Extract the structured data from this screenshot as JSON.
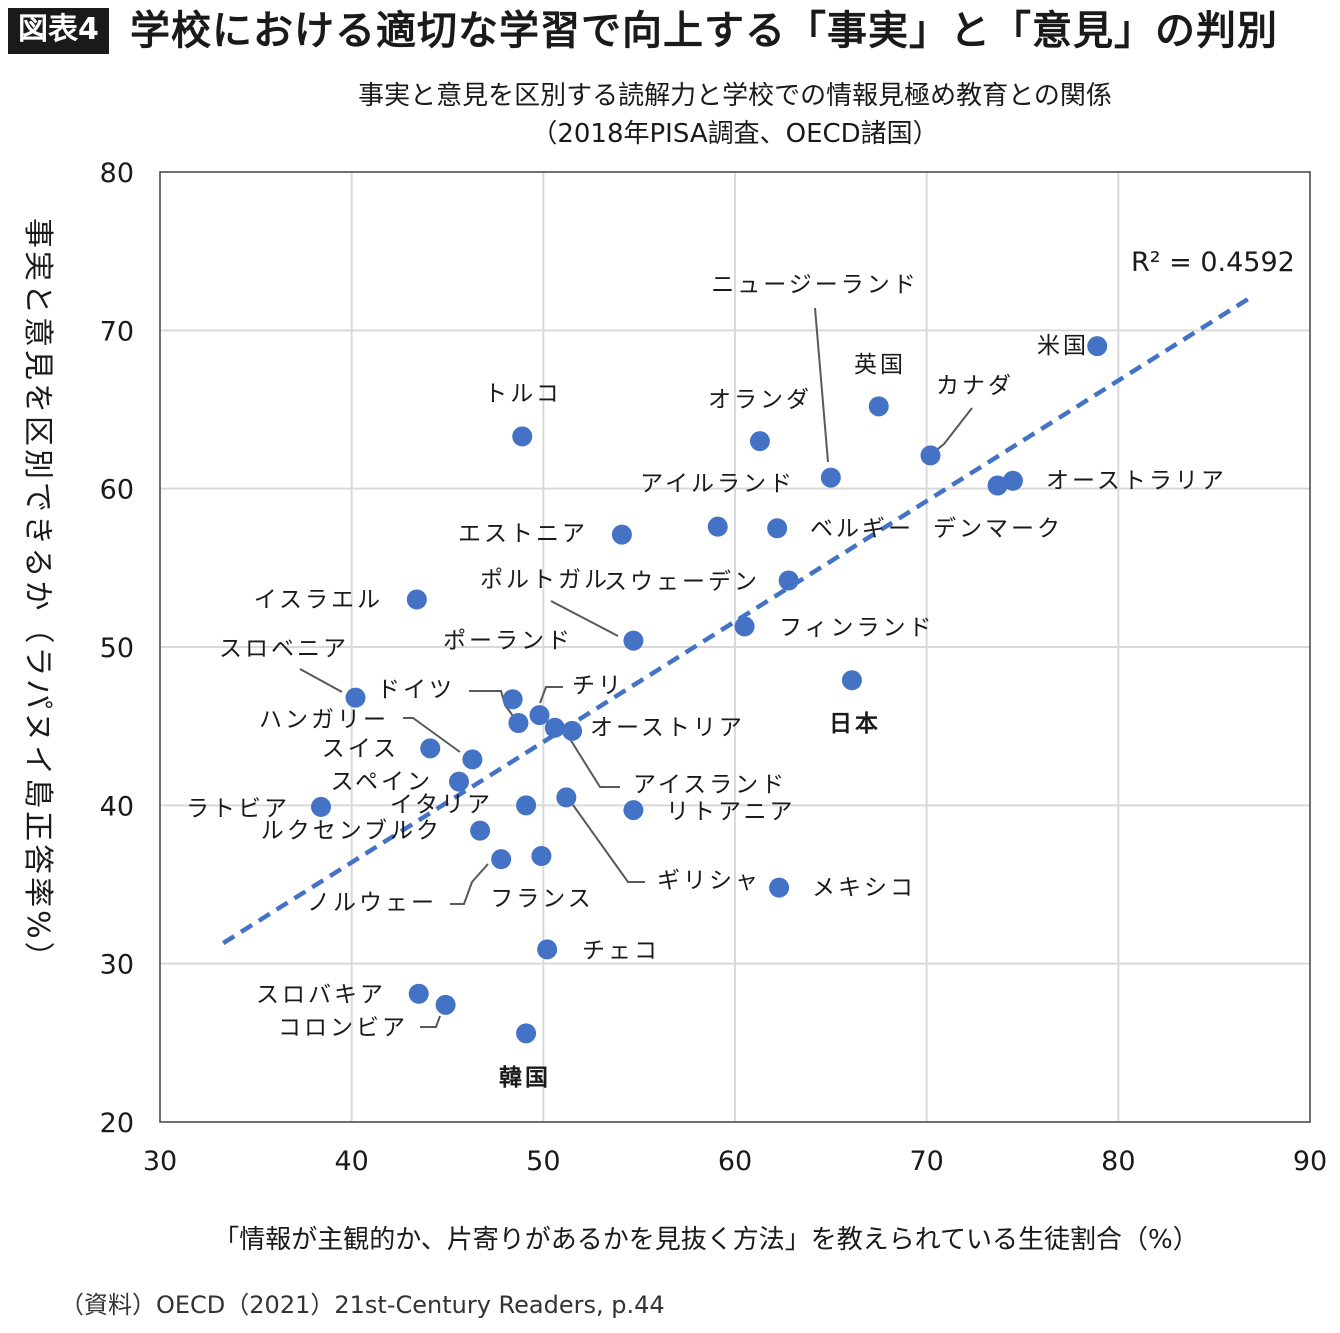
{
  "header": {
    "badge": "図表4",
    "title": "学校における適切な学習で向上する「事実」と「意見」の判別"
  },
  "chart_data": {
    "type": "scatter",
    "subtitle_line1": "事実と意見を区別する読解力と学校での情報見極め教育との関係",
    "subtitle_line2": "（2018年PISA調査、OECD諸国）",
    "xlabel": "「情報が主観的か、片寄りがあるかを見抜く方法」を教えられている生徒割合（%）",
    "ylabel": "事実と意見を区別できるか（ラパヌイ島正答率%）",
    "xlim": [
      30,
      90
    ],
    "ylim": [
      20,
      80
    ],
    "xticks": [
      30,
      40,
      50,
      60,
      70,
      80,
      90
    ],
    "yticks": [
      20,
      30,
      40,
      50,
      60,
      70,
      80
    ],
    "grid": true,
    "point_color": "#4472c4",
    "highlight_color": "#e8141b",
    "trendline": {
      "style": "dashed",
      "label": "R² = 0.4592",
      "from": [
        33.3,
        31.3
      ],
      "to": [
        86.8,
        72.0
      ]
    },
    "points": [
      {
        "name": "米国",
        "x": 78.9,
        "y": 69.0
      },
      {
        "name": "英国",
        "x": 67.5,
        "y": 65.2
      },
      {
        "name": "カナダ",
        "x": 70.2,
        "y": 62.1
      },
      {
        "name": "ニュージーランド",
        "x": 65.0,
        "y": 60.7
      },
      {
        "name": "オランダ",
        "x": 61.3,
        "y": 63.0
      },
      {
        "name": "トルコ",
        "x": 48.9,
        "y": 63.3
      },
      {
        "name": "オーストラリア",
        "x": 74.5,
        "y": 60.5
      },
      {
        "name": "デンマーク",
        "x": 73.7,
        "y": 60.2
      },
      {
        "name": "アイルランド",
        "x": 59.1,
        "y": 57.6
      },
      {
        "name": "ベルギー",
        "x": 62.2,
        "y": 57.5
      },
      {
        "name": "エストニア",
        "x": 54.1,
        "y": 57.1
      },
      {
        "name": "スウェーデン",
        "x": 62.8,
        "y": 54.2
      },
      {
        "name": "イスラエル",
        "x": 43.4,
        "y": 53.0
      },
      {
        "name": "ポルトガル",
        "x": 54.7,
        "y": 50.4
      },
      {
        "name": "フィンランド",
        "x": 60.5,
        "y": 51.3
      },
      {
        "name": "日本",
        "x": 66.1,
        "y": 47.9
      },
      {
        "name": "スロベニア",
        "x": 40.2,
        "y": 46.8
      },
      {
        "name": "ポーランド",
        "x": 48.4,
        "y": 46.7
      },
      {
        "name": "チリ",
        "x": 49.8,
        "y": 45.7
      },
      {
        "name": "ドイツ",
        "x": 48.7,
        "y": 45.2
      },
      {
        "name": "オーストリア",
        "x": 50.6,
        "y": 44.9
      },
      {
        "name": "アイスランド",
        "x": 51.5,
        "y": 44.7
      },
      {
        "name": "スイス",
        "x": 44.1,
        "y": 43.6
      },
      {
        "name": "ハンガリー",
        "x": 46.3,
        "y": 42.9
      },
      {
        "name": "スペイン",
        "x": 45.6,
        "y": 41.5
      },
      {
        "name": "ラトビア",
        "x": 38.4,
        "y": 39.9
      },
      {
        "name": "イタリア",
        "x": 49.1,
        "y": 40.0
      },
      {
        "name": "ギリシャ",
        "x": 51.2,
        "y": 40.5
      },
      {
        "name": "リトアニア",
        "x": 54.7,
        "y": 39.7
      },
      {
        "name": "ルクセンブルク",
        "x": 46.7,
        "y": 38.4
      },
      {
        "name": "ノルウェー",
        "x": 47.8,
        "y": 36.6
      },
      {
        "name": "フランス",
        "x": 49.9,
        "y": 36.8
      },
      {
        "name": "メキシコ",
        "x": 62.3,
        "y": 34.8
      },
      {
        "name": "チェコ",
        "x": 50.2,
        "y": 30.9
      },
      {
        "name": "スロバキア",
        "x": 43.5,
        "y": 28.1
      },
      {
        "name": "コロンビア",
        "x": 44.9,
        "y": 27.4
      },
      {
        "name": "韓国",
        "x": 49.1,
        "y": 25.6
      }
    ]
  },
  "source": "（資料）OECD（2021）21st-Century Readers, p.44"
}
